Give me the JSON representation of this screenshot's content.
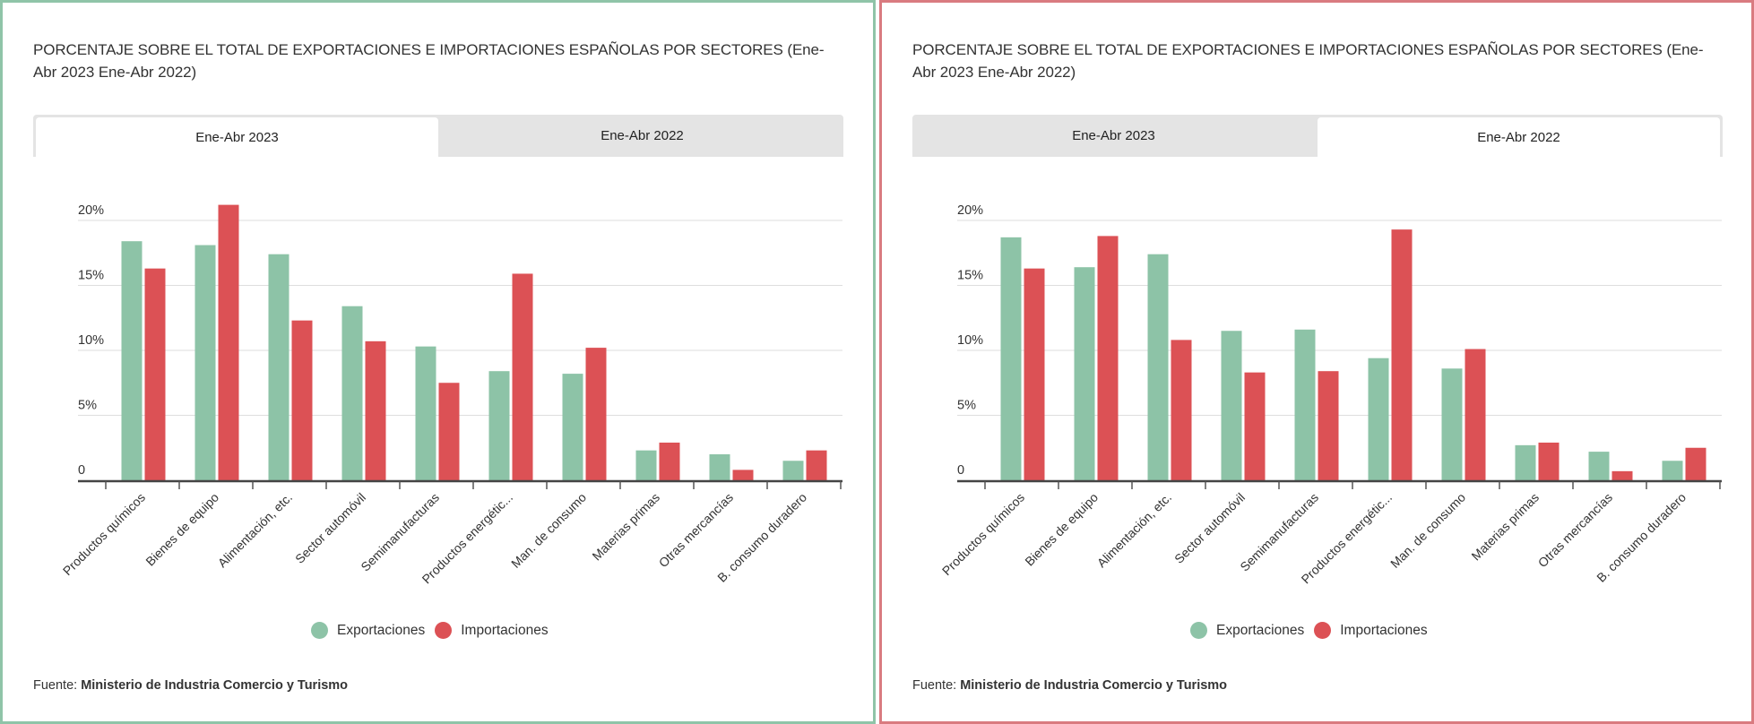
{
  "panels": [
    {
      "title": "PORCENTAJE SOBRE EL TOTAL DE EXPORTACIONES E IMPORTACIONES ESPAÑOLAS POR SECTORES (Ene-Abr 2023 Ene-Abr 2022)",
      "tabs": [
        {
          "label": "Ene-Abr 2023",
          "active": true
        },
        {
          "label": "Ene-Abr 2022",
          "active": false
        }
      ],
      "legend": [
        {
          "label": "Exportaciones",
          "color": "#8dc3a7"
        },
        {
          "label": "Importaciones",
          "color": "#dc5155"
        }
      ],
      "footer": {
        "prefix": "Fuente:",
        "source": "Ministerio de Industria Comercio y Turismo"
      },
      "border_color": "#8fc4a8"
    },
    {
      "title": "PORCENTAJE SOBRE EL TOTAL DE EXPORTACIONES E IMPORTACIONES ESPAÑOLAS POR SECTORES (Ene-Abr 2023 Ene-Abr 2022)",
      "tabs": [
        {
          "label": "Ene-Abr 2023",
          "active": false
        },
        {
          "label": "Ene-Abr 2022",
          "active": true
        }
      ],
      "legend": [
        {
          "label": "Exportaciones",
          "color": "#8dc3a7"
        },
        {
          "label": "Importaciones",
          "color": "#dc5155"
        }
      ],
      "footer": {
        "prefix": "Fuente:",
        "source": "Ministerio de Industria Comercio y Turismo"
      },
      "border_color": "#d97b80"
    }
  ],
  "chart_data": [
    {
      "type": "bar",
      "title": "Ene-Abr 2023",
      "xlabel": "",
      "ylabel": "",
      "ylim": [
        0,
        20
      ],
      "yticks": [
        0,
        5,
        10,
        15,
        20
      ],
      "ytick_labels": [
        "0",
        "5%",
        "10%",
        "15%",
        "20%"
      ],
      "grid": true,
      "legend_position": "bottom",
      "categories": [
        "Productos químicos",
        "Bienes de equipo",
        "Alimentación, etc.",
        "Sector automóvil",
        "Semimanufacturas",
        "Productos energétic...",
        "Man. de consumo",
        "Materias primas",
        "Otras mercancías",
        "B. consumo duradero"
      ],
      "series": [
        {
          "name": "Exportaciones",
          "color": "#8dc3a7",
          "values": [
            18.4,
            18.1,
            17.4,
            13.4,
            10.3,
            8.4,
            8.2,
            2.3,
            2.0,
            1.5
          ]
        },
        {
          "name": "Importaciones",
          "color": "#dc5155",
          "values": [
            16.3,
            21.2,
            12.3,
            10.7,
            7.5,
            15.9,
            10.2,
            2.9,
            0.8,
            2.3
          ]
        }
      ]
    },
    {
      "type": "bar",
      "title": "Ene-Abr 2022",
      "xlabel": "",
      "ylabel": "",
      "ylim": [
        0,
        20
      ],
      "yticks": [
        0,
        5,
        10,
        15,
        20
      ],
      "ytick_labels": [
        "0",
        "5%",
        "10%",
        "15%",
        "20%"
      ],
      "grid": true,
      "legend_position": "bottom",
      "categories": [
        "Productos químicos",
        "Bienes de equipo",
        "Alimentación, etc.",
        "Sector automóvil",
        "Semimanufacturas",
        "Productos energétic...",
        "Man. de consumo",
        "Materias primas",
        "Otras mercancías",
        "B. consumo duradero"
      ],
      "series": [
        {
          "name": "Exportaciones",
          "color": "#8dc3a7",
          "values": [
            18.7,
            16.4,
            17.4,
            11.5,
            11.6,
            9.4,
            8.6,
            2.7,
            2.2,
            1.5
          ]
        },
        {
          "name": "Importaciones",
          "color": "#dc5155",
          "values": [
            16.3,
            18.8,
            10.8,
            8.3,
            8.4,
            19.3,
            10.1,
            2.9,
            0.7,
            2.5
          ]
        }
      ]
    }
  ]
}
